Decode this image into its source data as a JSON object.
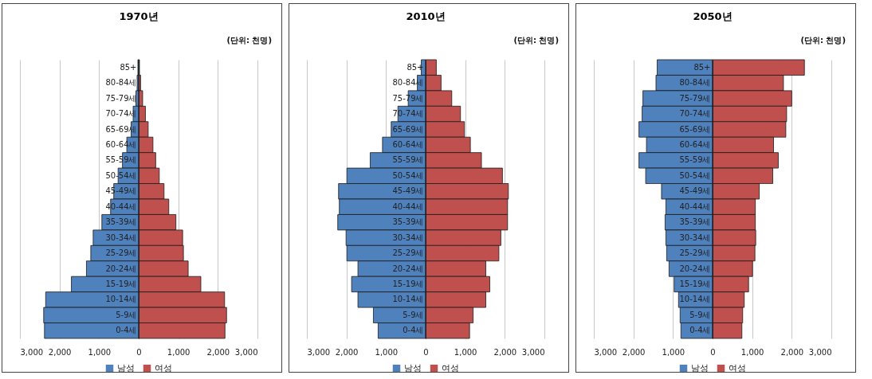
{
  "chart_data": [
    {
      "type": "bar",
      "orientation": "horizontal",
      "stacked": true,
      "title": "1970년",
      "annotations": [
        "(단위: 천명)"
      ],
      "categories": [
        "85+",
        "80-84세",
        "75-79세",
        "70-74세",
        "65-69세",
        "60-64세",
        "55-59세",
        "50-54세",
        "45-49세",
        "40-44세",
        "35-39세",
        "30-34세",
        "25-29세",
        "20-24세",
        "15-19세",
        "10-14세",
        "5-9세",
        "0-4세"
      ],
      "series": [
        {
          "name": "남성",
          "color": "#4f81bd",
          "values": [
            -20,
            -40,
            -70,
            -140,
            -190,
            -300,
            -410,
            -520,
            -630,
            -710,
            -930,
            -1150,
            -1210,
            -1320,
            -1700,
            -2350,
            -2400,
            -2380
          ]
        },
        {
          "name": "여성",
          "color": "#c0504d",
          "values": [
            20,
            50,
            100,
            170,
            240,
            360,
            430,
            520,
            640,
            760,
            940,
            1110,
            1130,
            1250,
            1570,
            2170,
            2220,
            2180
          ]
        }
      ],
      "xlim": [
        -3000,
        3000
      ],
      "xticks": [
        {
          "value": -3000,
          "label": "3,000"
        },
        {
          "value": -2000,
          "label": "2,000"
        },
        {
          "value": -1000,
          "label": "1,000"
        },
        {
          "value": 0,
          "label": "0"
        },
        {
          "value": 1000,
          "label": "1,000"
        },
        {
          "value": 2000,
          "label": "2,000"
        },
        {
          "value": 3000,
          "label": "3,000"
        }
      ],
      "grid": "x",
      "legend": "bottom"
    },
    {
      "type": "bar",
      "orientation": "horizontal",
      "stacked": true,
      "title": "2010년",
      "annotations": [
        "(단위: 천명)"
      ],
      "categories": [
        "85+",
        "80-84세",
        "75-79세",
        "70-74세",
        "65-69세",
        "60-64세",
        "55-59세",
        "50-54세",
        "45-49세",
        "40-44세",
        "35-39세",
        "30-34세",
        "25-29세",
        "20-24세",
        "15-19세",
        "10-14세",
        "5-9세",
        "0-4세"
      ],
      "series": [
        {
          "name": "남성",
          "color": "#4f81bd",
          "values": [
            -110,
            -210,
            -440,
            -700,
            -870,
            -1090,
            -1400,
            -1990,
            -2200,
            -2180,
            -2220,
            -2010,
            -1990,
            -1710,
            -1870,
            -1710,
            -1320,
            -1200
          ]
        },
        {
          "name": "여성",
          "color": "#c0504d",
          "values": [
            270,
            390,
            660,
            880,
            980,
            1130,
            1410,
            1940,
            2090,
            2070,
            2070,
            1900,
            1850,
            1520,
            1620,
            1520,
            1200,
            1110
          ]
        }
      ],
      "xlim": [
        -3000,
        3000
      ],
      "xticks": [
        {
          "value": -3000,
          "label": "3,000"
        },
        {
          "value": -2000,
          "label": "2,000"
        },
        {
          "value": -1000,
          "label": "1,000"
        },
        {
          "value": 0,
          "label": "0"
        },
        {
          "value": 1000,
          "label": "1,000"
        },
        {
          "value": 2000,
          "label": "2,000"
        },
        {
          "value": 3000,
          "label": "3,000"
        }
      ],
      "grid": "x",
      "legend": "bottom"
    },
    {
      "type": "bar",
      "orientation": "horizontal",
      "stacked": true,
      "title": "2050년",
      "annotations": [
        "(단위: 천명)"
      ],
      "categories": [
        "85+",
        "80-84세",
        "75-79세",
        "70-74세",
        "65-69세",
        "60-64세",
        "55-59세",
        "50-54세",
        "45-49세",
        "40-44세",
        "35-39세",
        "30-34세",
        "25-29세",
        "20-24세",
        "15-19세",
        "10-14세",
        "5-9세",
        "0-4세"
      ],
      "series": [
        {
          "name": "남성",
          "color": "#4f81bd",
          "values": [
            -1400,
            -1430,
            -1760,
            -1780,
            -1860,
            -1670,
            -1860,
            -1690,
            -1290,
            -1180,
            -1200,
            -1180,
            -1160,
            -1100,
            -970,
            -860,
            -820,
            -800
          ]
        },
        {
          "name": "여성",
          "color": "#c0504d",
          "values": [
            2320,
            1790,
            2000,
            1870,
            1850,
            1540,
            1660,
            1520,
            1180,
            1080,
            1080,
            1090,
            1070,
            1010,
            910,
            800,
            760,
            740
          ]
        }
      ],
      "xlim": [
        -3000,
        3000
      ],
      "xticks": [
        {
          "value": -3000,
          "label": "3,000"
        },
        {
          "value": -2000,
          "label": "2,000"
        },
        {
          "value": -1000,
          "label": "1,000"
        },
        {
          "value": 0,
          "label": "0"
        },
        {
          "value": 1000,
          "label": "1,000"
        },
        {
          "value": 2000,
          "label": "2,000"
        },
        {
          "value": 3000,
          "label": "3,000"
        }
      ],
      "grid": "x",
      "legend": "bottom"
    }
  ]
}
